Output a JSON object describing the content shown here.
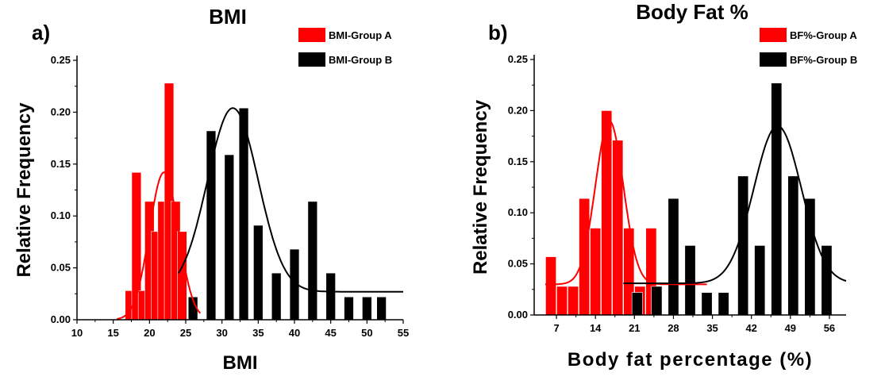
{
  "chart_data": [
    {
      "type": "bar",
      "panel_label": "a)",
      "title": "BMI",
      "xlabel": "BMI",
      "ylabel": "Relative Frequency",
      "xlim": [
        10,
        55
      ],
      "ylim": [
        0,
        0.25
      ],
      "xticks": [
        10,
        15,
        20,
        25,
        30,
        35,
        40,
        45,
        50,
        55
      ],
      "yticks": [
        "0.00",
        "0.05",
        "0.10",
        "0.15",
        "0.20",
        "0.25"
      ],
      "bar_width": 1.3,
      "legend_position": "top-right",
      "series": [
        {
          "name": "BMI-Group A",
          "color": "#ff0000",
          "x": [
            17.3,
            18.2,
            19.1,
            20.0,
            20.9,
            21.8,
            22.7,
            23.6,
            24.5
          ],
          "values": [
            0.028,
            0.142,
            0.028,
            0.114,
            0.085,
            0.114,
            0.228,
            0.114,
            0.085
          ],
          "fit": {
            "type": "gauss",
            "y0": 0,
            "xc": 22.0,
            "w": 4.0,
            "peak": 0.142,
            "x_range": [
              15.5,
              27.0
            ]
          }
        },
        {
          "name": "BMI-Group B",
          "color": "#000000",
          "x": [
            26.0,
            28.5,
            31.0,
            33.0,
            35.0,
            37.5,
            40.0,
            42.5,
            45.0,
            47.5,
            50.0,
            52.0
          ],
          "values": [
            0.022,
            0.182,
            0.159,
            0.204,
            0.091,
            0.045,
            0.068,
            0.114,
            0.045,
            0.022,
            0.022,
            0.022
          ],
          "fit": {
            "type": "gauss",
            "y0": 0.027,
            "xc": 31.5,
            "w": 7.0,
            "peak": 0.204,
            "x_range": [
              24.0,
              55.0
            ]
          }
        }
      ]
    },
    {
      "type": "bar",
      "panel_label": "b)",
      "title": "Body Fat %",
      "xlabel": "Body fat percentage (%)",
      "ylabel": "Relative Frequency",
      "xlim": [
        3,
        59
      ],
      "ylim": [
        0,
        0.25
      ],
      "xticks": [
        7,
        14,
        21,
        28,
        35,
        42,
        49,
        56
      ],
      "yticks": [
        "0.00",
        "0.05",
        "0.10",
        "0.15",
        "0.20",
        "0.25"
      ],
      "bar_width": 1.9,
      "legend_position": "top-right",
      "series": [
        {
          "name": "BF%-Group A",
          "color": "#ff0000",
          "x": [
            6.0,
            8.0,
            10.0,
            12.0,
            14.0,
            16.0,
            18.0,
            20.0,
            22.0,
            24.0
          ],
          "values": [
            0.057,
            0.028,
            0.028,
            0.114,
            0.085,
            0.2,
            0.171,
            0.085,
            0.028,
            0.085
          ],
          "fit": {
            "type": "gauss",
            "y0": 0.03,
            "xc": 16.5,
            "w": 5.0,
            "peak": 0.19,
            "x_range": [
              5.0,
              34.0
            ]
          }
        },
        {
          "name": "BF%-Group B",
          "color": "#000000",
          "x": [
            21.5,
            25.0,
            28.0,
            31.0,
            34.0,
            37.0,
            40.5,
            43.5,
            46.5,
            49.5,
            52.5,
            55.5
          ],
          "values": [
            0.022,
            0.028,
            0.114,
            0.068,
            0.022,
            0.022,
            0.136,
            0.068,
            0.227,
            0.136,
            0.114,
            0.068
          ],
          "fit": {
            "type": "gauss",
            "y0": 0.031,
            "xc": 46.7,
            "w": 8.5,
            "peak": 0.185,
            "x_range": [
              19.0,
              59.0
            ]
          }
        }
      ]
    }
  ]
}
